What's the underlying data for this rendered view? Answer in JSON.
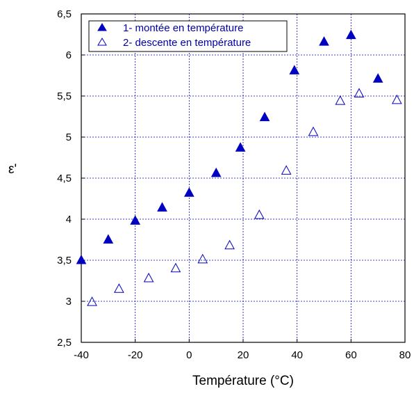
{
  "chart_data": {
    "type": "scatter",
    "xlabel": "Température (°C)",
    "ylabel": "ε'",
    "xlim": [
      -40,
      80
    ],
    "ylim": [
      2.5,
      6.5
    ],
    "x_ticks": [
      -40,
      -20,
      0,
      20,
      40,
      60,
      80
    ],
    "x_tick_labels": [
      "-40",
      "-20",
      "0",
      "20",
      "40",
      "60",
      "80"
    ],
    "y_ticks": [
      2.5,
      3,
      3.5,
      4,
      4.5,
      5,
      5.5,
      6,
      6.5
    ],
    "y_tick_labels": [
      "2,5",
      "3",
      "3,5",
      "4",
      "4,5",
      "5",
      "5,5",
      "6",
      "6,5"
    ],
    "grid": true,
    "legend_position": "top-left",
    "colors": {
      "marker": "#0000c0",
      "grid": "#0000c0",
      "axis": "#000000"
    },
    "series": [
      {
        "name": "1- montée en température",
        "marker": "filled-triangle",
        "x": [
          -40,
          -30,
          -20,
          -10,
          0,
          10,
          19,
          28,
          39,
          50,
          60,
          70
        ],
        "y": [
          3.5,
          3.75,
          3.98,
          4.14,
          4.32,
          4.56,
          4.87,
          5.24,
          5.81,
          6.16,
          6.24,
          5.71
        ]
      },
      {
        "name": "2- descente en température",
        "marker": "open-triangle",
        "x": [
          -36,
          -26,
          -15,
          -5,
          5,
          15,
          26,
          36,
          46,
          56,
          63,
          77
        ],
        "y": [
          2.99,
          3.15,
          3.28,
          3.4,
          3.51,
          3.68,
          4.05,
          4.59,
          5.06,
          5.44,
          5.53,
          5.45
        ]
      }
    ]
  }
}
